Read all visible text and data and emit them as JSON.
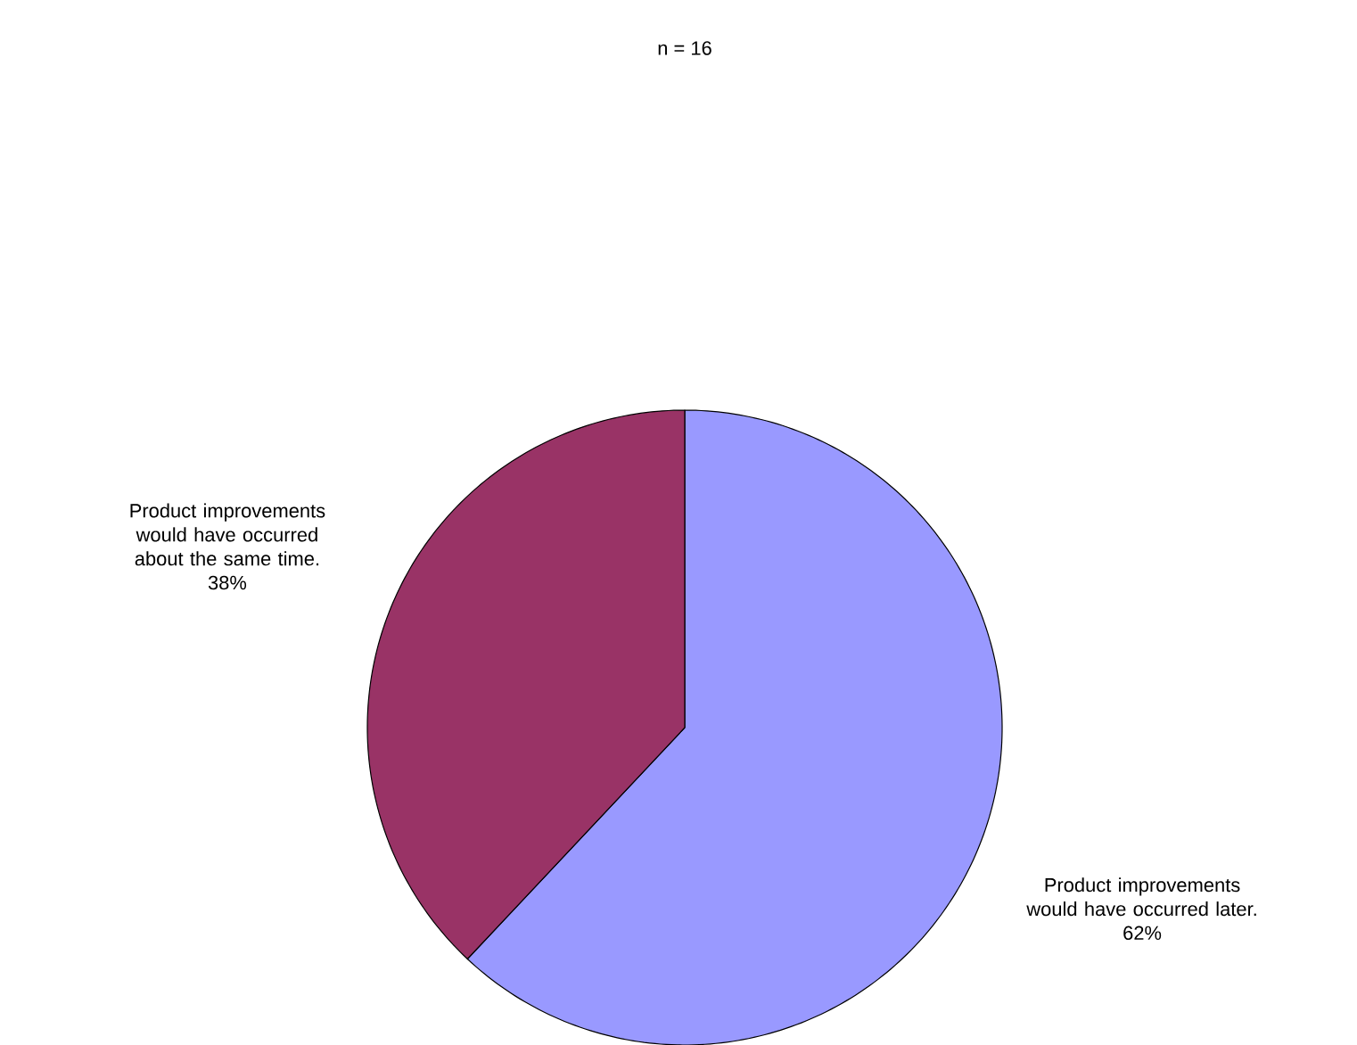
{
  "chart_data": {
    "type": "pie",
    "title": "n = 16",
    "categories": [
      "Product improvements would have occurred later.",
      "Product improvements would have occurred about the same time."
    ],
    "values": [
      62,
      38
    ],
    "colors": [
      "#9999ff",
      "#993366"
    ],
    "value_labels": [
      "62%",
      "38%"
    ]
  }
}
